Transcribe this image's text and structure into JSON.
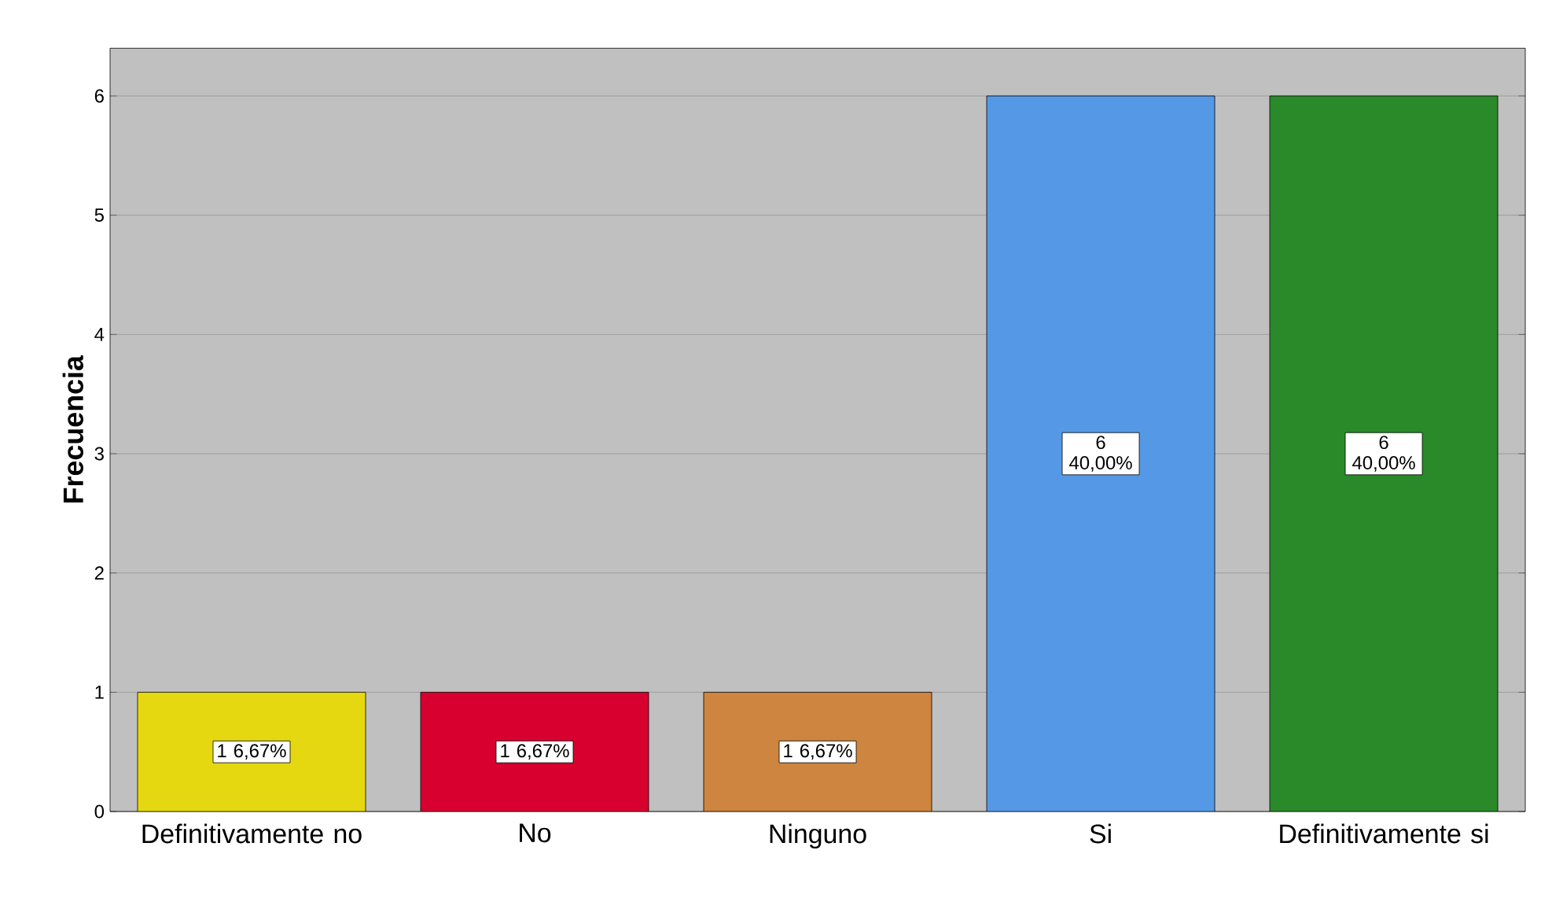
{
  "chart_data": {
    "type": "bar",
    "ylabel": "Frecuencia",
    "categories": [
      "Definitivamente no",
      "No",
      "Ninguno",
      "Si",
      "Definitivamente si"
    ],
    "values": [
      1,
      1,
      1,
      6,
      6
    ],
    "colors": [
      "#e6d810",
      "#d8002e",
      "#cd853f",
      "#5599e6",
      "#2a8a2a"
    ],
    "value_labels": [
      "1 6,67%",
      "1 6,67%",
      "1 6,67%",
      "6 40,00%",
      "6 40,00%"
    ],
    "ylim": [
      0,
      6.4
    ],
    "yticks": [
      0,
      1,
      2,
      3,
      4,
      5,
      6
    ],
    "grid": "y"
  }
}
